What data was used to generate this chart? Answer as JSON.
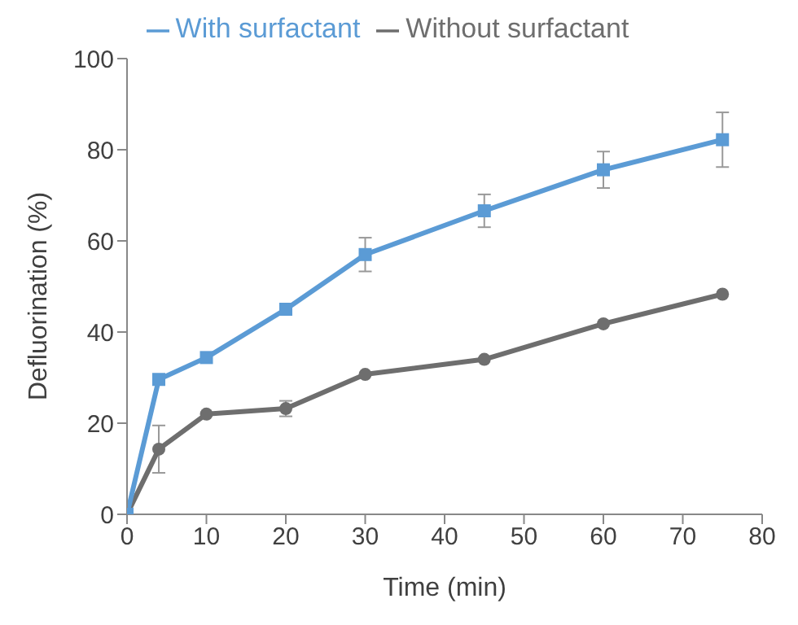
{
  "chart_data": {
    "type": "line",
    "xlabel": "Time (min)",
    "ylabel": "Defluorination (%)",
    "x": [
      0,
      4,
      10,
      20,
      30,
      45,
      60,
      75
    ],
    "series": [
      {
        "name": "Without surfactant",
        "color": "#6e6e6e",
        "marker": "circle",
        "values": [
          0,
          14.3,
          22.0,
          23.2,
          30.7,
          34.0,
          41.8,
          48.3
        ],
        "errors": [
          null,
          5.2,
          null,
          1.7,
          null,
          null,
          null,
          null
        ]
      },
      {
        "name": "With surfactant",
        "color": "#5b9bd5",
        "marker": "square",
        "values": [
          0,
          29.6,
          34.4,
          45.0,
          57.0,
          66.6,
          75.6,
          82.2
        ],
        "errors": [
          null,
          null,
          null,
          null,
          3.7,
          3.6,
          4.0,
          6.0
        ]
      }
    ],
    "xlim": [
      0,
      80
    ],
    "xticks": [
      0,
      10,
      20,
      30,
      40,
      50,
      60,
      70,
      80
    ],
    "ylim": [
      0,
      100
    ],
    "yticks": [
      0,
      20,
      40,
      60,
      80,
      100
    ],
    "grid": false,
    "legend": "top"
  }
}
